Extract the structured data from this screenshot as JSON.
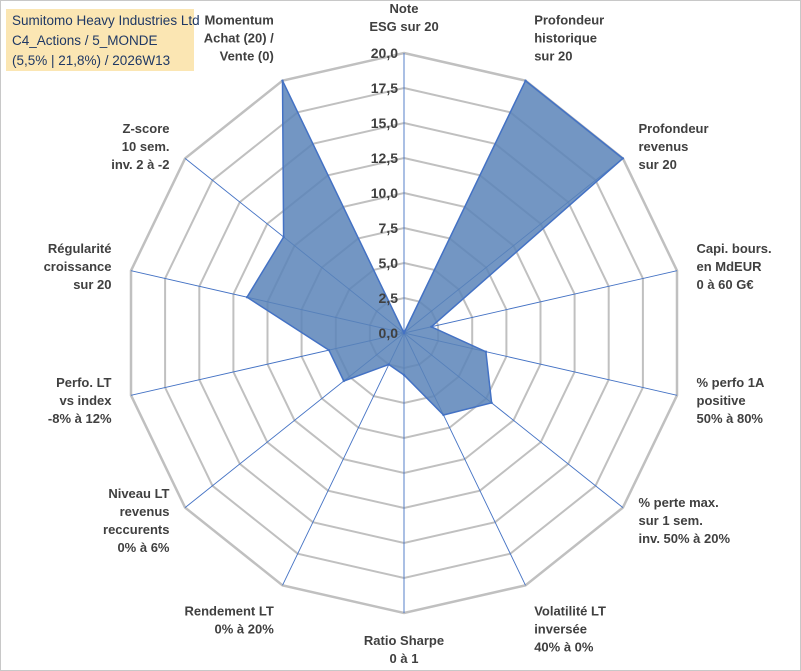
{
  "title_box": {
    "line1": "Sumitomo Heavy Industries Ltd",
    "line2": "C4_Actions / 5_MONDE",
    "line3": "(5,5% | 21,8%) / 2026W13"
  },
  "colors": {
    "grid": "#c0c0c0",
    "spoke": "#4472c4",
    "fill": "#5b84b8",
    "stroke": "#4472c4",
    "title_bg": "#fbe6b3",
    "title_text": "#1f3864",
    "label_text": "#404040"
  },
  "chart_data": {
    "type": "radar",
    "title": "Sumitomo Heavy Industries Ltd",
    "rlim": [
      0,
      20
    ],
    "ticks": [
      "0,0",
      "2,5",
      "5,0",
      "7,5",
      "10,0",
      "12,5",
      "15,0",
      "17,5",
      "20,0"
    ],
    "categories": [
      [
        "Note",
        "ESG sur 20"
      ],
      [
        "Profondeur",
        "historique",
        "sur 20"
      ],
      [
        "Profondeur",
        "revenus",
        "sur 20"
      ],
      [
        "Capi. bours.",
        "en MdEUR",
        "0 à 60 G€"
      ],
      [
        "% perfo 1A",
        "positive",
        "50% à 80%"
      ],
      [
        "% perte max.",
        "sur 1 sem.",
        "inv. 50% à 20%"
      ],
      [
        "Volatilité LT",
        "inversée",
        "40% à 0%"
      ],
      [
        "Ratio Sharpe",
        "0 à 1"
      ],
      [
        "Rendement LT",
        "0% à 20%"
      ],
      [
        "Niveau LT",
        "revenus",
        "reccurents",
        "0% à 6%"
      ],
      [
        "Perfo. LT",
        "vs index",
        "-8% à 12%"
      ],
      [
        "Régularité",
        "croissance",
        "sur 20"
      ],
      [
        "Z-score",
        "10 sem.",
        "inv. 2 à -2"
      ],
      [
        "Momentum",
        "Achat (20) /",
        "Vente (0)"
      ]
    ],
    "series": [
      {
        "name": "Sumitomo Heavy Industries Ltd",
        "values": [
          0,
          20,
          20,
          2.0,
          6.0,
          8.0,
          6.5,
          3.0,
          2.5,
          5.5,
          5.5,
          11.5,
          11.0,
          20
        ]
      }
    ]
  }
}
